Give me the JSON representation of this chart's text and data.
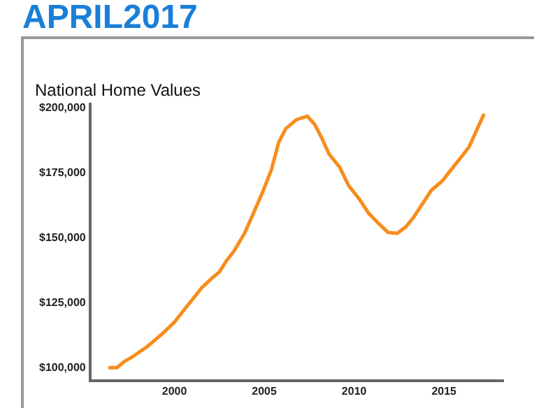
{
  "chart_data": {
    "type": "line",
    "title": "APRIL2017",
    "subtitle": "National Home Values",
    "color": "#f78d1e",
    "x": [
      1996.4,
      1996.8,
      1997.2,
      1997.6,
      1998.2,
      1998.5,
      1998.9,
      1999.4,
      2000,
      2000.6,
      2001.1,
      2001.5,
      2002.1,
      2002.5,
      2002.9,
      2003.3,
      2003.9,
      2004.4,
      2004.9,
      2005.4,
      2005.8,
      2006.2,
      2006.8,
      2007.4,
      2007.8,
      2008.2,
      2008.6,
      2009.2,
      2009.7,
      2010.3,
      2010.8,
      2011.4,
      2011.9,
      2012.4,
      2012.9,
      2013.3,
      2013.8,
      2014.3,
      2014.9,
      2015.4,
      2016,
      2016.4,
      2016.8,
      2017.2
    ],
    "values": [
      100000,
      100000,
      102300,
      103900,
      106700,
      108200,
      110500,
      113500,
      117500,
      122800,
      127100,
      130600,
      134500,
      136800,
      141200,
      144700,
      151700,
      159500,
      167400,
      176200,
      186700,
      192000,
      195500,
      196800,
      193700,
      188400,
      182300,
      177100,
      170000,
      164800,
      159500,
      155200,
      152000,
      151700,
      154300,
      157800,
      163000,
      168300,
      171800,
      176200,
      181400,
      185000,
      191100,
      197200
    ],
    "xlim": [
      1995.3,
      2018.3
    ],
    "xticks": [
      2000,
      2005,
      2010,
      2015
    ],
    "ylim": [
      95000,
      201500
    ],
    "yticks": [
      {
        "value": 100000,
        "label": "$100,000"
      },
      {
        "value": 125000,
        "label": "$125,000"
      },
      {
        "value": 150000,
        "label": "$150,000"
      },
      {
        "value": 175000,
        "label": "$175,000"
      },
      {
        "value": 200000,
        "label": "$200,000"
      }
    ],
    "grid": false,
    "legend": false,
    "marker": "none",
    "line_style": "solid"
  }
}
